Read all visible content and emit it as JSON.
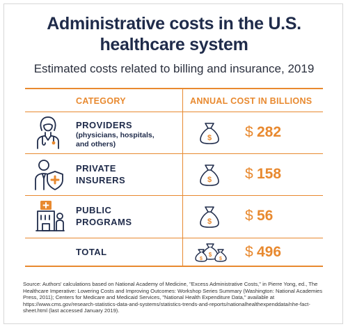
{
  "title_line1": "Administrative costs in the U.S.",
  "title_line2": "healthcare system",
  "subtitle": "Estimated costs related to billing and insurance, 2019",
  "headers": {
    "category": "CATEGORY",
    "cost": "ANNUAL COST IN BILLIONS"
  },
  "rows": [
    {
      "label": "PROVIDERS",
      "sub1": "(physicians, hospitals,",
      "sub2": "and others)",
      "currency": "$",
      "amount": "282",
      "icon": "doctor-icon"
    },
    {
      "label1": "PRIVATE",
      "label2": "INSURERS",
      "currency": "$",
      "amount": "158",
      "icon": "insurer-shield-icon"
    },
    {
      "label1": "PUBLIC",
      "label2": "PROGRAMS",
      "currency": "$",
      "amount": "56",
      "icon": "public-building-icon"
    }
  ],
  "total": {
    "label": "TOTAL",
    "currency": "$",
    "amount": "496"
  },
  "source": "Source: Authors' calculations based on National Academy of Medicine, \"Excess Administrative Costs,\" in Pierre Yong, ed., The Healthcare Imperative: Lowering Costs and Improving Outcomes: Workshop Series Summary (Washington: National Academies Press, 2011); Centers for Medicare and Medicaid Services, \"National Health Expenditure Data,\" available at https://www.cms.gov/research-statistics-data-and-systems/statistics-trends-and-reports/nationalhealthexpenddata/nhe-fact-sheet.html (last accessed January 2019).",
  "colors": {
    "accent": "#e8892f",
    "navy": "#1f2b4a"
  }
}
